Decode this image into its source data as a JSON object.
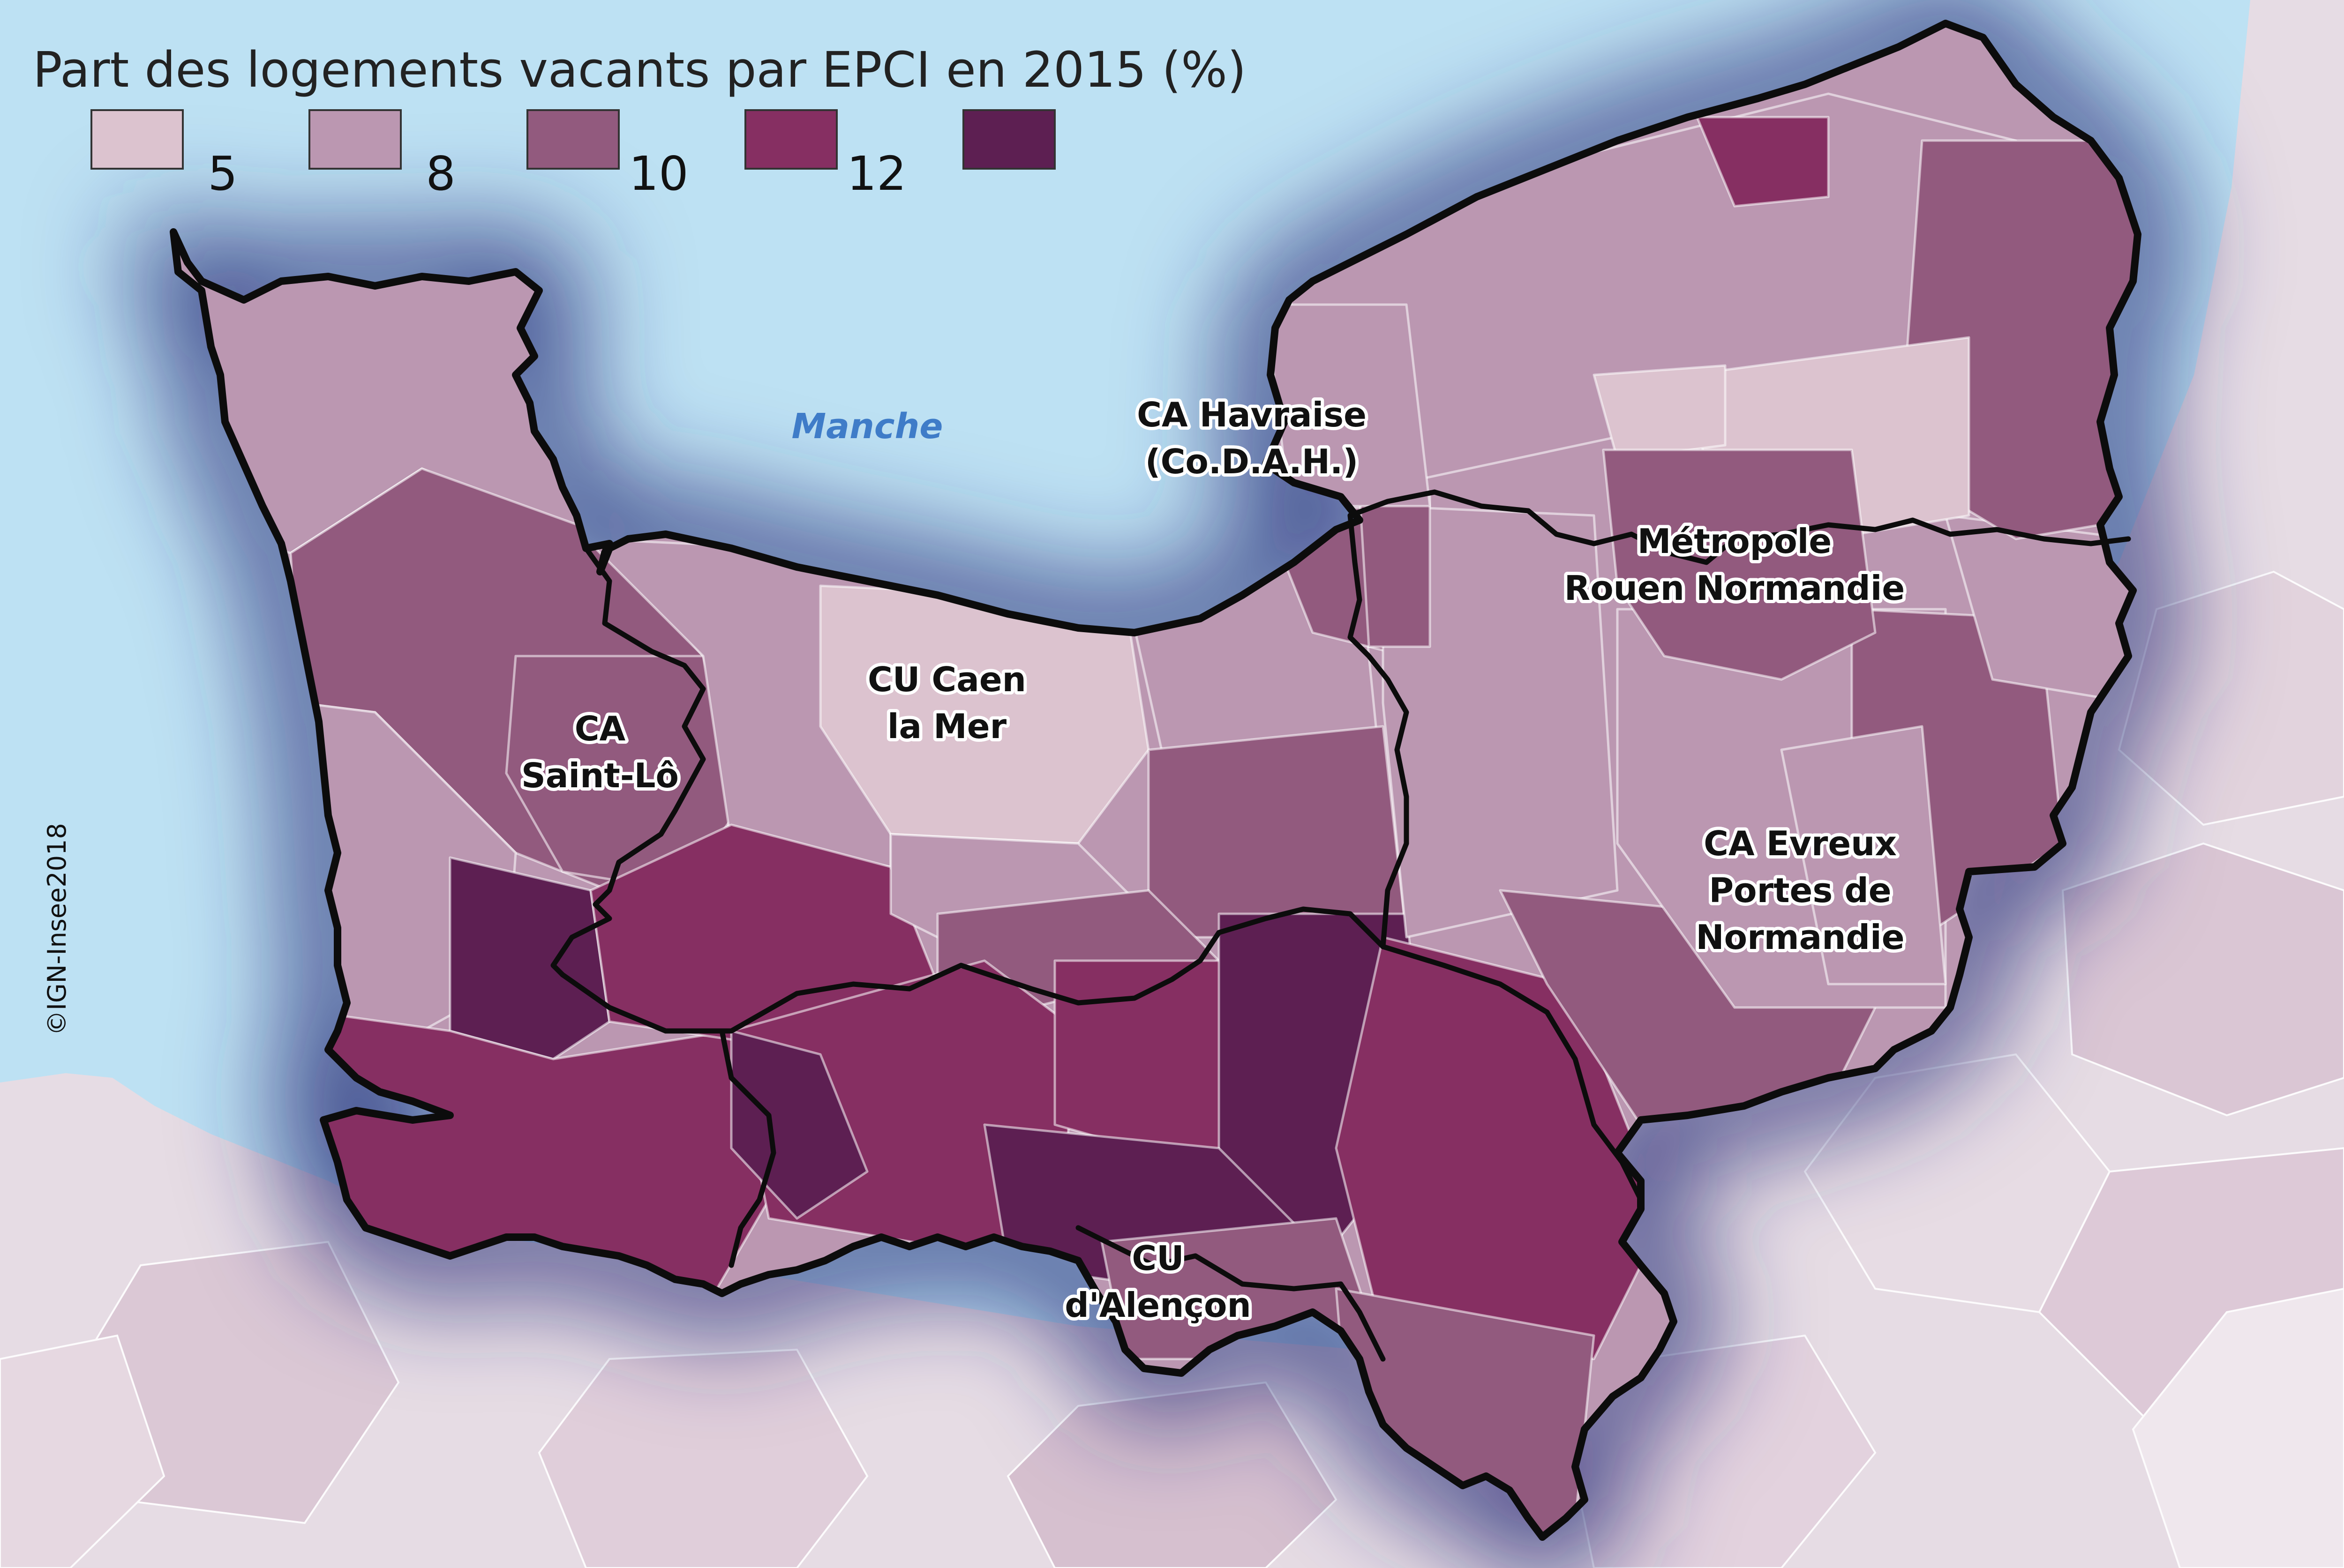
{
  "map": {
    "title": "Part des logements vacants par EPCI en 2015 (%)",
    "credit": "©IGN-Insee2018",
    "sea_label": "Manche",
    "legend": {
      "classes": [
        {
          "color": "#dcc3cf",
          "label": "5"
        },
        {
          "color": "#bb97b1",
          "label": "8"
        },
        {
          "color": "#925a7e",
          "label": "10"
        },
        {
          "color": "#862f62",
          "label": "12"
        },
        {
          "color": "#5d1f52",
          "label": ""
        }
      ]
    },
    "places": [
      {
        "id": "ca-havraise",
        "lines": [
          "CA Havraise",
          "(Co.D.A.H.)"
        ]
      },
      {
        "id": "metropole-rouen",
        "lines": [
          "Métropole",
          "Rouen Normandie"
        ]
      },
      {
        "id": "cu-caen",
        "lines": [
          "CU Caen",
          "la Mer"
        ]
      },
      {
        "id": "ca-saint-lo",
        "lines": [
          "CA",
          "Saint-Lô"
        ]
      },
      {
        "id": "ca-evreux",
        "lines": [
          "CA Evreux",
          "Portes de",
          "Normandie"
        ]
      },
      {
        "id": "cu-alencon",
        "lines": [
          "CU",
          "d'Alençon"
        ]
      }
    ],
    "colors": {
      "sea": "#bde1f3",
      "outside_land": "#e6dce4",
      "halo": "#2c2f78",
      "border": "#0c0c0c"
    }
  }
}
